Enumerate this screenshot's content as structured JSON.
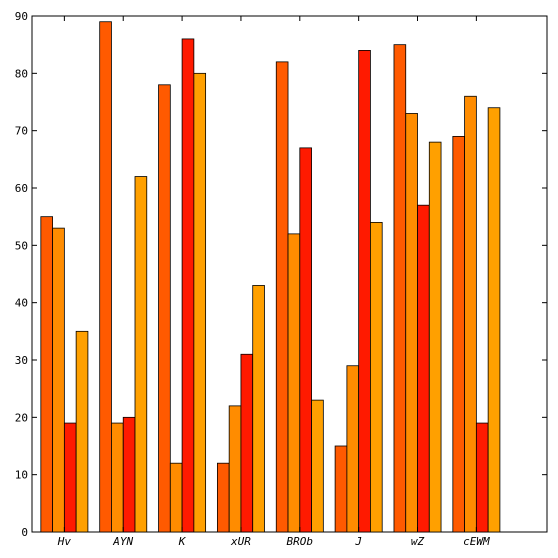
{
  "chart_data": {
    "type": "bar",
    "title": "",
    "xlabel": "",
    "ylabel": "",
    "ylim": [
      0,
      90
    ],
    "yticks": [
      0,
      10,
      20,
      30,
      40,
      50,
      60,
      70,
      80,
      90
    ],
    "categories": [
      "Hv",
      "AYN",
      "K",
      "xUR",
      "BROb",
      "J",
      "wZ",
      "cEWM"
    ],
    "grid": false,
    "legend": "none",
    "series": [
      {
        "color": "#ff5a00",
        "values": [
          55,
          89,
          78,
          12,
          82,
          15,
          85,
          69
        ]
      },
      {
        "color": "#ff8c00",
        "values": [
          53,
          19,
          12,
          22,
          52,
          29,
          73,
          76
        ]
      },
      {
        "color": "#ff1a00",
        "values": [
          19,
          20,
          86,
          31,
          67,
          84,
          57,
          19
        ]
      },
      {
        "color": "#ffa000",
        "values": [
          35,
          62,
          80,
          43,
          23,
          54,
          68,
          74
        ]
      }
    ]
  }
}
